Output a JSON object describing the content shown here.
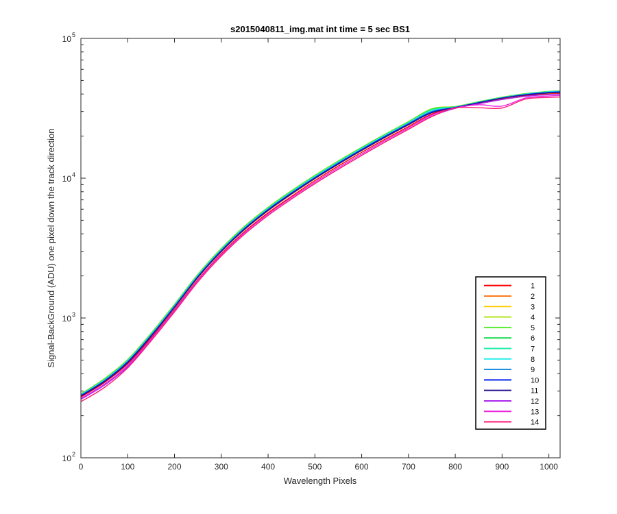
{
  "chart_data": {
    "type": "line",
    "title": "s2015040811_img.mat int time = 5 sec   BS1",
    "xlabel": "Wavelength Pixels",
    "ylabel": "Signal-BackGround (ADU) one pixel down the track direction",
    "xlim": [
      0,
      1024
    ],
    "ylim": [
      100,
      100000
    ],
    "yscale": "log",
    "grid": false,
    "legend_position": "lower-right",
    "x_ticks": [
      "0",
      "100",
      "200",
      "300",
      "400",
      "500",
      "600",
      "700",
      "800",
      "900",
      "1000"
    ],
    "y_ticks": [
      {
        "base": "10",
        "exp": "2"
      },
      {
        "base": "10",
        "exp": "3"
      },
      {
        "base": "10",
        "exp": "4"
      },
      {
        "base": "10",
        "exp": "5"
      }
    ],
    "x": [
      0,
      50,
      100,
      150,
      200,
      250,
      300,
      350,
      400,
      450,
      500,
      550,
      600,
      650,
      700,
      750,
      800,
      850,
      900,
      950,
      1000,
      1024
    ],
    "series": [
      {
        "name": "1",
        "color": "#ff0000",
        "values": [
          272,
          345,
          470,
          720,
          1150,
          1880,
          2880,
          4150,
          5650,
          7400,
          9600,
          12200,
          15300,
          19000,
          23400,
          28800,
          32000,
          34500,
          37000,
          39000,
          40200,
          40500
        ]
      },
      {
        "name": "2",
        "color": "#ff7a1a",
        "values": [
          277,
          352,
          482,
          740,
          1185,
          1940,
          2970,
          4280,
          5830,
          7650,
          9900,
          12550,
          15750,
          19550,
          24050,
          29600,
          32200,
          34700,
          37200,
          39300,
          40500,
          40800
        ]
      },
      {
        "name": "3",
        "color": "#ffcc00",
        "values": [
          282,
          360,
          494,
          760,
          1220,
          2000,
          3060,
          4410,
          6010,
          7900,
          10200,
          12900,
          16200,
          20100,
          24700,
          30500,
          32400,
          35000,
          37600,
          39800,
          41000,
          41400
        ]
      },
      {
        "name": "4",
        "color": "#b3e61a",
        "values": [
          287,
          368,
          506,
          780,
          1255,
          2060,
          3150,
          4550,
          6200,
          8150,
          10500,
          13300,
          16650,
          20650,
          25400,
          31400,
          32600,
          35300,
          38000,
          40300,
          41800,
          42200
        ]
      },
      {
        "name": "5",
        "color": "#55ee33",
        "values": [
          286,
          366,
          503,
          776,
          1248,
          2050,
          3135,
          4530,
          6170,
          8110,
          10450,
          13250,
          16600,
          20600,
          25350,
          31300,
          32500,
          35200,
          37900,
          40200,
          41700,
          42100
        ]
      },
      {
        "name": "6",
        "color": "#22dd55",
        "values": [
          284,
          363,
          498,
          768,
          1236,
          2030,
          3105,
          4480,
          6110,
          8030,
          10350,
          13100,
          16420,
          20380,
          25050,
          30900,
          32400,
          35100,
          37800,
          40100,
          41600,
          42000
        ]
      },
      {
        "name": "7",
        "color": "#22eeaa",
        "values": [
          283,
          361,
          496,
          764,
          1230,
          2020,
          3090,
          4460,
          6080,
          7990,
          10300,
          13050,
          16350,
          20300,
          24950,
          30700,
          32300,
          35000,
          37700,
          40000,
          41500,
          41900
        ]
      },
      {
        "name": "8",
        "color": "#22eeee",
        "values": [
          282,
          359,
          493,
          760,
          1222,
          2008,
          3070,
          4430,
          6040,
          7940,
          10230,
          12970,
          16250,
          20180,
          24800,
          30400,
          32200,
          34900,
          37600,
          39900,
          41400,
          41800
        ]
      },
      {
        "name": "9",
        "color": "#1e90e0",
        "values": [
          280,
          356,
          489,
          753,
          1212,
          1990,
          3045,
          4395,
          5990,
          7870,
          10140,
          12860,
          16120,
          20020,
          24600,
          30000,
          32100,
          34800,
          37500,
          39700,
          41200,
          41600
        ]
      },
      {
        "name": "10",
        "color": "#0022ee",
        "values": [
          278,
          353,
          484,
          746,
          1200,
          1972,
          3018,
          4355,
          5935,
          7800,
          10050,
          12740,
          15970,
          19830,
          24380,
          29700,
          32000,
          34700,
          37400,
          39500,
          41000,
          41300
        ]
      },
      {
        "name": "11",
        "color": "#2a1090",
        "values": [
          276,
          350,
          479,
          738,
          1188,
          1952,
          2988,
          4310,
          5875,
          7720,
          9950,
          12610,
          15810,
          19630,
          24130,
          29400,
          31900,
          34600,
          37300,
          39300,
          40700,
          41000
        ]
      },
      {
        "name": "12",
        "color": "#aa22ee",
        "values": [
          262,
          330,
          448,
          690,
          1110,
          1820,
          2780,
          3990,
          5420,
          7100,
          9150,
          11600,
          14550,
          18150,
          22400,
          27700,
          31600,
          34000,
          36500,
          38500,
          39600,
          39900
        ]
      },
      {
        "name": "13",
        "color": "#ee22dd",
        "values": [
          266,
          336,
          458,
          706,
          1136,
          1862,
          2845,
          4085,
          5550,
          7270,
          9370,
          11880,
          14900,
          18580,
          22920,
          28300,
          31800,
          33500,
          32800,
          37400,
          38700,
          39000
        ]
      },
      {
        "name": "14",
        "color": "#ff1a77",
        "values": [
          252,
          318,
          440,
          686,
          1105,
          1815,
          2775,
          3985,
          5415,
          7095,
          9140,
          11590,
          14540,
          18120,
          22360,
          27600,
          31800,
          31900,
          31800,
          36800,
          37800,
          38100
        ]
      }
    ]
  }
}
